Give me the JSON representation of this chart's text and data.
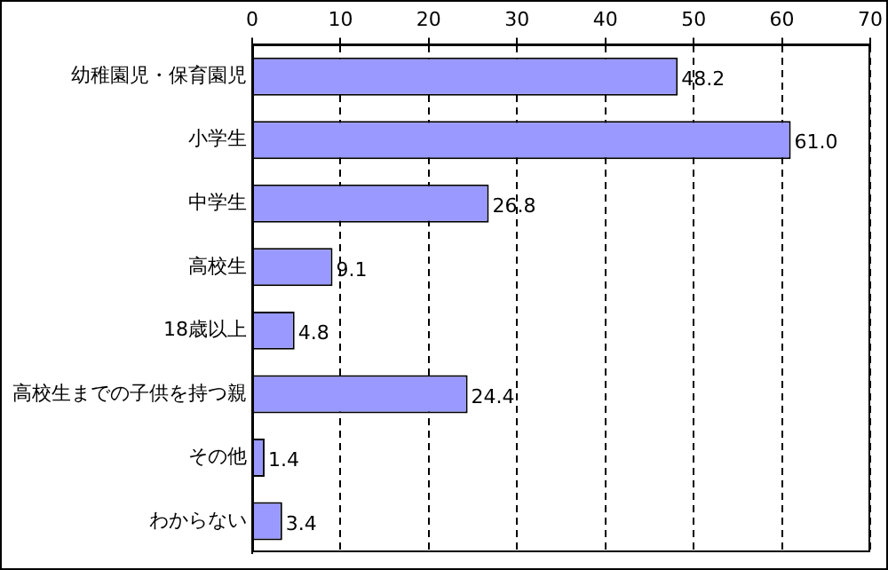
{
  "chart_data": {
    "type": "bar",
    "orientation": "horizontal",
    "categories": [
      "幼稚園児・保育園児",
      "小学生",
      "中学生",
      "高校生",
      "18歳以上",
      "高校生までの子供を持つ親",
      "その他",
      "わからない"
    ],
    "values": [
      48.2,
      61.0,
      26.8,
      9.1,
      4.8,
      24.4,
      1.4,
      3.4
    ],
    "value_labels": [
      "48.2",
      "61.0",
      "26.8",
      "9.1",
      "4.8",
      "24.4",
      "1.4",
      "3.4"
    ],
    "color": "#9999ff",
    "xlim": [
      0,
      70
    ],
    "xticks": [
      0,
      10,
      20,
      30,
      40,
      50,
      60,
      70
    ],
    "grid": "x",
    "line_style": "dashed",
    "legend": false
  }
}
